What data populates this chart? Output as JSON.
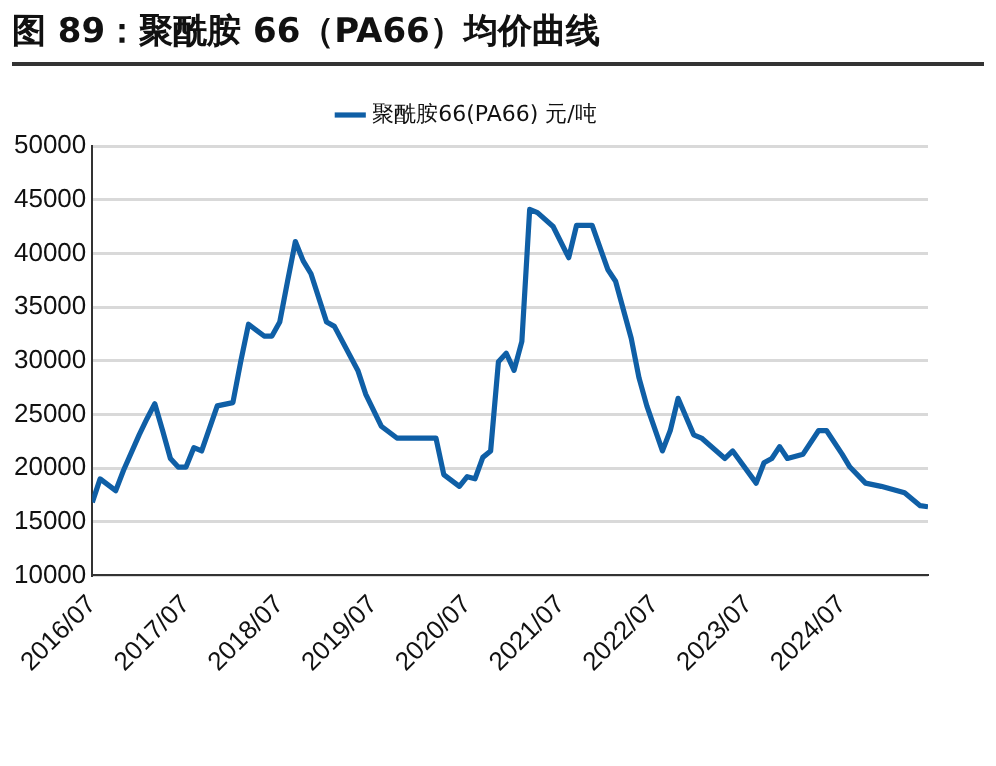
{
  "chart_data": {
    "type": "line",
    "title": "图 89：聚酰胺 66（PA66）均价曲线",
    "x": [
      "2016-07",
      "2016-08",
      "2016-10",
      "2016-11",
      "2017-01",
      "2017-02",
      "2017-03",
      "2017-04",
      "2017-05",
      "2017-06",
      "2017-07",
      "2017-08",
      "2017-09",
      "2017-11",
      "2018-01",
      "2018-02",
      "2018-03",
      "2018-05",
      "2018-06",
      "2018-07",
      "2018-08",
      "2018-09",
      "2018-10",
      "2018-11",
      "2019-01",
      "2019-02",
      "2019-05",
      "2019-06",
      "2019-08",
      "2019-10",
      "2020-03",
      "2020-04",
      "2020-06",
      "2020-07",
      "2020-08",
      "2020-09",
      "2020-10",
      "2020-11",
      "2020-12",
      "2021-01",
      "2021-02",
      "2021-03",
      "2021-04",
      "2021-06",
      "2021-08",
      "2021-09",
      "2021-11",
      "2022-01",
      "2022-02",
      "2022-04",
      "2022-05",
      "2022-06",
      "2022-08",
      "2022-09",
      "2022-10",
      "2022-12",
      "2023-01",
      "2023-04",
      "2023-05",
      "2023-08",
      "2023-09",
      "2023-10",
      "2023-11",
      "2023-12",
      "2024-02",
      "2024-04",
      "2024-05",
      "2024-07",
      "2024-08",
      "2024-10",
      "2024-12",
      "2025-03",
      "2025-05",
      "2025-06"
    ],
    "series": [
      {
        "name": "聚酰胺66(PA66) 元/吨",
        "color": "#0f5fa6",
        "values": [
          16800,
          19000,
          17900,
          19800,
          23100,
          24600,
          26000,
          23500,
          20900,
          20100,
          20100,
          21900,
          21600,
          25800,
          26100,
          29900,
          33400,
          32300,
          32300,
          33600,
          37400,
          41100,
          39300,
          38100,
          33600,
          33200,
          29100,
          26900,
          23900,
          22800,
          22800,
          19400,
          18300,
          19200,
          19000,
          21000,
          21600,
          29900,
          30700,
          29100,
          31800,
          44100,
          43800,
          42500,
          39600,
          42600,
          42600,
          38500,
          37400,
          32100,
          28400,
          25800,
          21600,
          23500,
          26500,
          23100,
          22800,
          20900,
          21600,
          18600,
          20500,
          20900,
          22000,
          20900,
          21300,
          23500,
          23500,
          21300,
          20100,
          18600,
          18300,
          17700,
          16500,
          16400
        ]
      }
    ],
    "xlim": [
      "2016-07",
      "2025-06"
    ],
    "xticks": [
      {
        "value": "2016-07",
        "label": "2016/07"
      },
      {
        "value": "2017-07",
        "label": "2017/07"
      },
      {
        "value": "2018-07",
        "label": "2018/07"
      },
      {
        "value": "2019-07",
        "label": "2019/07"
      },
      {
        "value": "2020-07",
        "label": "2020/07"
      },
      {
        "value": "2021-07",
        "label": "2021/07"
      },
      {
        "value": "2022-07",
        "label": "2022/07"
      },
      {
        "value": "2023-07",
        "label": "2023/07"
      },
      {
        "value": "2024-07",
        "label": "2024/07"
      }
    ],
    "ylim": [
      10000,
      50000
    ],
    "yticks": [
      10000,
      15000,
      20000,
      25000,
      30000,
      35000,
      40000,
      45000,
      50000
    ],
    "grid": "y",
    "legend": "top",
    "marker": "none",
    "line_style": "solid"
  }
}
